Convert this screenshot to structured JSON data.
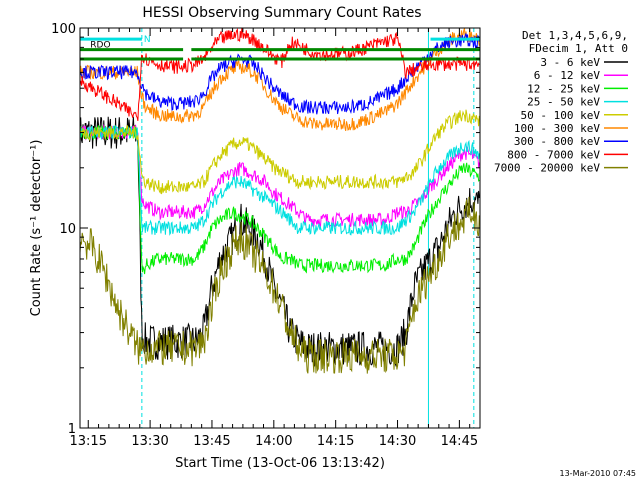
{
  "chart_data": {
    "type": "line",
    "title": "HESSI Observing Summary Count Rates",
    "xlabel": "Start Time (13-Oct-06 13:13:42)",
    "ylabel": "Count Rate (s⁻¹ detector⁻¹)",
    "yscale": "log",
    "ylim": [
      1,
      100
    ],
    "xlim_minutes": [
      13.0,
      110.0
    ],
    "x_tick_labels": [
      "13:15",
      "13:30",
      "13:45",
      "14:00",
      "14:15",
      "14:30",
      "14:45"
    ],
    "x_tick_minutes": [
      15,
      30,
      45,
      60,
      75,
      90,
      105
    ],
    "y_tick_labels": [
      "1",
      "10",
      "100"
    ],
    "y_tick_values": [
      1,
      10,
      100
    ],
    "footer_date": "13-Mar-2010 07:45",
    "legend_header": [
      "Det 1,3,4,5,6,9,",
      "FDecim 1, Att 0"
    ],
    "legend_position": "right",
    "flags": {
      "rdo_label": "RDO",
      "n_label": "N",
      "rdo_bar_color": "#008800",
      "n_bar_color": "#00e0e0",
      "n_intervals": [
        [
          13.0,
          28.0
        ],
        [
          98.0,
          110.0
        ]
      ],
      "rdo_intervals": [
        [
          13.0,
          38.0
        ],
        [
          40.0,
          110.0
        ]
      ],
      "rdo_level": 78,
      "rdo_low_level": 70,
      "n_level": 88
    },
    "vertical_lines": {
      "solid_minutes": [
        13.0,
        97.5
      ],
      "dashed_minutes": [
        28.0,
        108.5
      ],
      "color": "#00e0e0"
    },
    "series": [
      {
        "name": "3 - 6 keV",
        "color": "#000000",
        "x": [
          13,
          16,
          19,
          22,
          25,
          27,
          28,
          29,
          32,
          35,
          38,
          41,
          43,
          45,
          47,
          50,
          52,
          54,
          56,
          58,
          60,
          62,
          64,
          66,
          68,
          70,
          72,
          75,
          78,
          81,
          84,
          87,
          90,
          92,
          94,
          96,
          98,
          100,
          102,
          104,
          106,
          108,
          110
        ],
        "y": [
          30,
          30,
          30,
          30,
          30,
          30,
          3,
          2.7,
          2.7,
          2.7,
          2.7,
          2.7,
          3,
          5,
          7,
          9,
          11,
          10,
          9,
          7,
          5,
          4,
          3,
          2.7,
          2.5,
          2.5,
          2.5,
          2.5,
          2.5,
          2.5,
          2.5,
          2.5,
          2.5,
          3,
          5,
          6,
          7,
          8,
          10,
          12,
          13,
          14,
          13
        ]
      },
      {
        "name": "6 - 12 keV",
        "color": "#ff00ff",
        "x": [
          13,
          16,
          19,
          22,
          25,
          27,
          28,
          29,
          32,
          35,
          38,
          41,
          43,
          45,
          47,
          50,
          52,
          54,
          56,
          58,
          60,
          62,
          64,
          66,
          68,
          70,
          72,
          75,
          78,
          81,
          84,
          87,
          90,
          92,
          94,
          96,
          98,
          100,
          102,
          104,
          106,
          108,
          110
        ],
        "y": [
          30,
          30,
          30,
          30,
          30,
          30,
          14,
          13,
          12,
          12,
          12,
          12,
          13,
          15,
          17,
          19,
          20,
          19,
          18,
          17,
          15,
          14,
          13,
          12,
          11,
          11,
          11,
          11,
          11,
          11,
          11,
          11,
          12,
          12,
          13,
          14,
          16,
          18,
          20,
          22,
          24,
          23,
          21
        ]
      },
      {
        "name": "12 - 25 keV",
        "color": "#00ee00",
        "x": [
          13,
          16,
          19,
          22,
          25,
          27,
          28,
          29,
          32,
          35,
          38,
          41,
          43,
          45,
          47,
          50,
          52,
          54,
          56,
          58,
          60,
          62,
          64,
          66,
          68,
          70,
          72,
          75,
          78,
          81,
          84,
          87,
          90,
          92,
          94,
          96,
          98,
          100,
          102,
          104,
          106,
          108,
          110
        ],
        "y": [
          30,
          30,
          30,
          30,
          30,
          30,
          6,
          6.5,
          7,
          7,
          7,
          7,
          8,
          10,
          11,
          12,
          11.5,
          11,
          10,
          9,
          8,
          7,
          7,
          6.5,
          6.5,
          6.5,
          6.5,
          6.5,
          6.5,
          6.5,
          6.5,
          6.5,
          7,
          7,
          8,
          10,
          12,
          14,
          16,
          18,
          20,
          19,
          18
        ]
      },
      {
        "name": "25 - 50 keV",
        "color": "#00e0e0",
        "x": [
          13,
          16,
          19,
          22,
          25,
          27,
          28,
          29,
          32,
          35,
          38,
          41,
          43,
          45,
          47,
          50,
          52,
          54,
          56,
          58,
          60,
          62,
          64,
          66,
          68,
          70,
          72,
          75,
          78,
          81,
          84,
          87,
          90,
          92,
          94,
          96,
          98,
          100,
          102,
          104,
          106,
          108,
          110
        ],
        "y": [
          30,
          30,
          30,
          30,
          30,
          30,
          10,
          10,
          10,
          10,
          10,
          10,
          11,
          13,
          15,
          17,
          17,
          16,
          15,
          14,
          13,
          12,
          11,
          10,
          10,
          10,
          10,
          10,
          10,
          10,
          10,
          10,
          10,
          11,
          12,
          14,
          17,
          20,
          22,
          24,
          26,
          25,
          23
        ]
      },
      {
        "name": "50 - 100 keV",
        "color": "#cccc00",
        "x": [
          13,
          16,
          19,
          22,
          25,
          27,
          28,
          29,
          32,
          35,
          38,
          41,
          43,
          45,
          47,
          50,
          52,
          54,
          56,
          58,
          60,
          62,
          64,
          66,
          68,
          70,
          72,
          75,
          78,
          81,
          84,
          87,
          90,
          92,
          94,
          96,
          98,
          100,
          102,
          104,
          106,
          108,
          110
        ],
        "y": [
          30,
          30,
          30,
          30,
          30,
          30,
          18,
          17,
          16,
          16,
          16,
          16,
          17,
          20,
          23,
          26,
          27,
          26,
          24,
          22,
          20,
          19,
          18,
          17,
          17,
          17,
          17,
          17,
          17,
          17,
          17,
          17,
          17,
          18,
          19,
          22,
          26,
          30,
          33,
          35,
          37,
          36,
          34
        ]
      },
      {
        "name": "100 - 300 keV",
        "color": "#ff8800",
        "x": [
          13,
          16,
          19,
          22,
          25,
          27,
          28,
          29,
          32,
          35,
          38,
          41,
          43,
          45,
          47,
          50,
          52,
          54,
          56,
          58,
          60,
          62,
          64,
          66,
          68,
          70,
          72,
          75,
          78,
          81,
          84,
          87,
          90,
          92,
          94,
          96,
          98,
          100,
          102,
          104,
          106,
          108,
          110
        ],
        "y": [
          60,
          60,
          60,
          60,
          60,
          60,
          45,
          40,
          37,
          36,
          36,
          37,
          40,
          48,
          56,
          62,
          64,
          62,
          57,
          50,
          44,
          40,
          37,
          35,
          34,
          33,
          33,
          33,
          33,
          34,
          36,
          38,
          42,
          48,
          55,
          62,
          70,
          78,
          85,
          90,
          93,
          92,
          88
        ]
      },
      {
        "name": "300 - 800 keV",
        "color": "#0000ff",
        "x": [
          13,
          16,
          19,
          22,
          25,
          27,
          28,
          29,
          32,
          35,
          38,
          41,
          43,
          45,
          47,
          50,
          52,
          54,
          56,
          58,
          60,
          62,
          64,
          66,
          68,
          70,
          72,
          75,
          78,
          81,
          84,
          87,
          90,
          92,
          94,
          96,
          98,
          100,
          102,
          104,
          106,
          108,
          110
        ],
        "y": [
          60,
          60,
          60,
          60,
          60,
          60,
          52,
          47,
          43,
          42,
          42,
          43,
          47,
          56,
          63,
          68,
          70,
          68,
          63,
          56,
          50,
          46,
          43,
          41,
          40,
          40,
          40,
          40,
          40,
          41,
          43,
          46,
          50,
          56,
          62,
          68,
          75,
          80,
          84,
          86,
          87,
          86,
          84
        ]
      },
      {
        "name": "800 - 7000 keV",
        "color": "#ff0000",
        "x": [
          13,
          16,
          19,
          22,
          25,
          27,
          28,
          29,
          32,
          35,
          38,
          41,
          43,
          45,
          47,
          50,
          52,
          54,
          56,
          58,
          60,
          62,
          64,
          66,
          68,
          70,
          72,
          75,
          78,
          81,
          84,
          87,
          90,
          92,
          94,
          96,
          98,
          100,
          102,
          104,
          106,
          108,
          110
        ],
        "y": [
          55,
          50,
          46,
          42,
          38,
          36,
          75,
          70,
          66,
          64,
          64,
          66,
          70,
          80,
          88,
          92,
          93,
          90,
          85,
          78,
          72,
          68,
          84,
          82,
          78,
          75,
          74,
          74,
          75,
          78,
          82,
          86,
          88,
          60,
          62,
          64,
          66,
          66,
          66,
          66,
          66,
          66,
          66
        ]
      },
      {
        "name": "7000 - 20000 keV",
        "color": "#808000",
        "x": [
          13,
          16,
          19,
          22,
          25,
          27,
          28,
          29,
          32,
          35,
          38,
          41,
          43,
          45,
          47,
          50,
          52,
          54,
          56,
          58,
          60,
          62,
          64,
          66,
          68,
          70,
          72,
          75,
          78,
          81,
          84,
          87,
          90,
          92,
          94,
          96,
          98,
          100,
          102,
          104,
          106,
          108,
          110
        ],
        "y": [
          9,
          8,
          6,
          4,
          3,
          2.5,
          2.5,
          2.5,
          2.5,
          2.5,
          2.5,
          2.5,
          2.7,
          4,
          6,
          8,
          9,
          8,
          7,
          6,
          5,
          4,
          3,
          2.5,
          2.3,
          2.3,
          2.3,
          2.3,
          2.3,
          2.3,
          2.3,
          2.3,
          2.3,
          2.5,
          4,
          5,
          6,
          7,
          9,
          10,
          11,
          12,
          11
        ]
      }
    ]
  }
}
